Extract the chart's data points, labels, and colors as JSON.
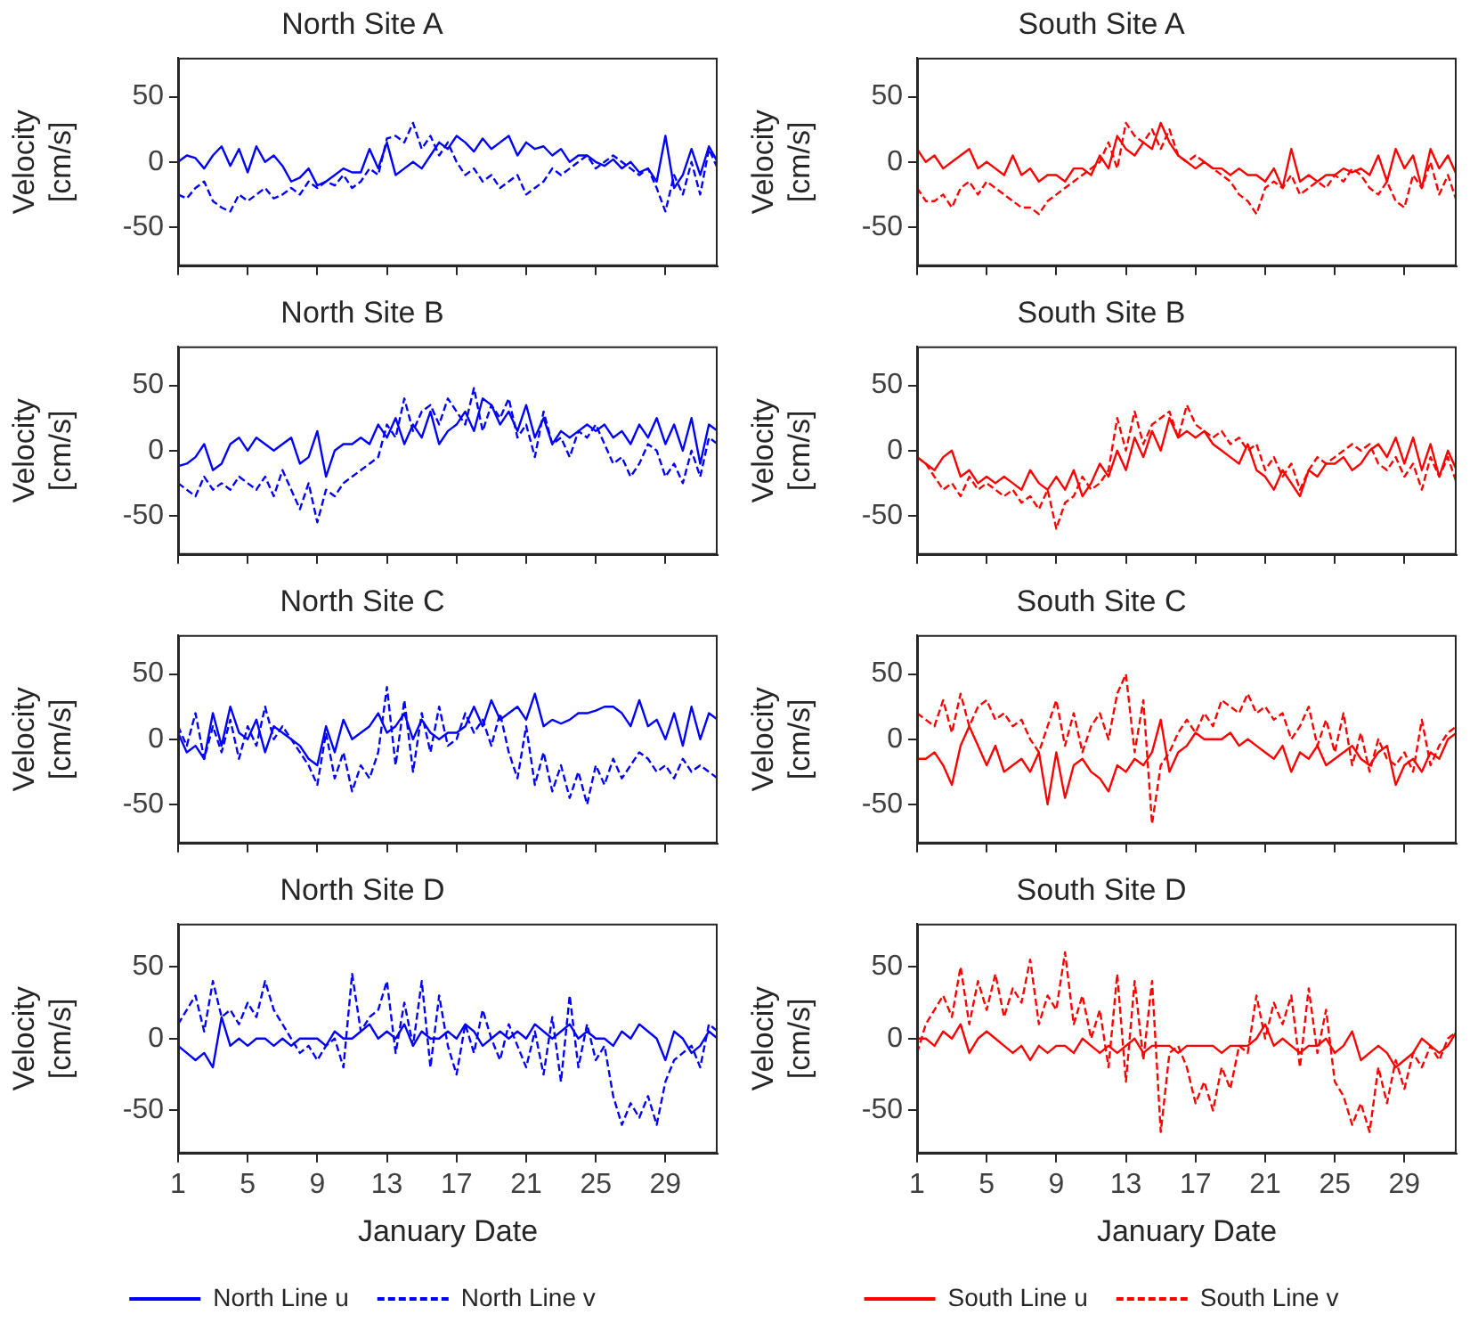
{
  "chart_data": [
    {
      "type": "line",
      "title": "North Site A",
      "ylabel": "Velocity [cm/s]",
      "xlim": [
        1,
        32
      ],
      "xticks": [
        1,
        5,
        9,
        13,
        17,
        21,
        25,
        29
      ],
      "ylim": [
        -80,
        80
      ],
      "yticks": [
        -50,
        0,
        50
      ],
      "tick_labels": "y",
      "grid": false,
      "marker": "none",
      "x": [
        1,
        1.5,
        2,
        2.5,
        3,
        3.5,
        4,
        4.5,
        5,
        5.5,
        6,
        6.5,
        7,
        7.5,
        8,
        8.5,
        9,
        9.5,
        10,
        10.5,
        11,
        11.5,
        12,
        12.5,
        13,
        13.5,
        14,
        14.5,
        15,
        15.5,
        16,
        16.5,
        17,
        17.5,
        18,
        18.5,
        19,
        19.5,
        20,
        20.5,
        21,
        21.5,
        22,
        22.5,
        23,
        23.5,
        24,
        24.5,
        25,
        25.5,
        26,
        26.5,
        27,
        27.5,
        28,
        28.5,
        29,
        29.5,
        30,
        30.5,
        31,
        31.5,
        32
      ],
      "series": [
        {
          "color": "#0000ff",
          "line_style": "solid",
          "values": [
            0,
            5,
            3,
            -5,
            5,
            12,
            -3,
            10,
            -8,
            12,
            0,
            5,
            -3,
            -15,
            -12,
            -5,
            -18,
            -15,
            -10,
            -5,
            -8,
            -8,
            10,
            -5,
            15,
            -10,
            -5,
            0,
            -5,
            5,
            15,
            10,
            20,
            15,
            8,
            18,
            10,
            15,
            20,
            5,
            15,
            10,
            12,
            5,
            10,
            0,
            5,
            5,
            0,
            -3,
            2,
            -5,
            0,
            -8,
            -5,
            -15,
            20,
            -20,
            -10,
            10,
            -10,
            12,
            0
          ]
        },
        {
          "color": "#0000ff",
          "line_style": "dashed",
          "values": [
            -25,
            -28,
            -20,
            -15,
            -30,
            -35,
            -38,
            -25,
            -30,
            -25,
            -20,
            -28,
            -25,
            -20,
            -25,
            -15,
            -20,
            -15,
            -18,
            -10,
            -20,
            -15,
            -5,
            -10,
            18,
            20,
            15,
            30,
            10,
            20,
            5,
            15,
            0,
            -10,
            -5,
            -15,
            -10,
            -20,
            -15,
            -10,
            -25,
            -20,
            -15,
            -5,
            -10,
            -5,
            0,
            5,
            -5,
            0,
            5,
            0,
            -5,
            -10,
            -5,
            -20,
            -38,
            -10,
            -25,
            0,
            -25,
            10,
            -5
          ]
        }
      ]
    },
    {
      "type": "line",
      "title": "South Site A",
      "ylabel": "Velocity [cm/s]",
      "xlim": [
        1,
        32
      ],
      "xticks": [
        1,
        5,
        9,
        13,
        17,
        21,
        25,
        29
      ],
      "ylim": [
        -80,
        80
      ],
      "yticks": [
        -50,
        0,
        50
      ],
      "tick_labels": "y",
      "grid": false,
      "marker": "none",
      "x": [
        1,
        1.5,
        2,
        2.5,
        3,
        3.5,
        4,
        4.5,
        5,
        5.5,
        6,
        6.5,
        7,
        7.5,
        8,
        8.5,
        9,
        9.5,
        10,
        10.5,
        11,
        11.5,
        12,
        12.5,
        13,
        13.5,
        14,
        14.5,
        15,
        15.5,
        16,
        16.5,
        17,
        17.5,
        18,
        18.5,
        19,
        19.5,
        20,
        20.5,
        21,
        21.5,
        22,
        22.5,
        23,
        23.5,
        24,
        24.5,
        25,
        25.5,
        26,
        26.5,
        27,
        27.5,
        28,
        28.5,
        29,
        29.5,
        30,
        30.5,
        31,
        31.5,
        32
      ],
      "series": [
        {
          "color": "#ff0000",
          "line_style": "solid",
          "values": [
            10,
            0,
            5,
            -5,
            0,
            5,
            10,
            -5,
            0,
            -5,
            -10,
            5,
            -10,
            -5,
            -15,
            -10,
            -10,
            -15,
            -5,
            -5,
            -10,
            5,
            -5,
            20,
            10,
            5,
            15,
            10,
            30,
            15,
            5,
            0,
            -5,
            0,
            -5,
            -5,
            -10,
            -5,
            -10,
            -10,
            -15,
            -5,
            -20,
            10,
            -15,
            -10,
            -15,
            -10,
            -10,
            -5,
            -8,
            -5,
            -10,
            5,
            -15,
            10,
            -5,
            5,
            -20,
            10,
            -5,
            5,
            -10
          ]
        },
        {
          "color": "#ff0000",
          "line_style": "dashed",
          "values": [
            -20,
            -30,
            -30,
            -25,
            -35,
            -20,
            -15,
            -25,
            -15,
            -20,
            -25,
            -30,
            -35,
            -35,
            -40,
            -30,
            -25,
            -20,
            -15,
            -10,
            -5,
            0,
            15,
            -5,
            30,
            20,
            15,
            25,
            10,
            25,
            5,
            0,
            5,
            0,
            -5,
            -10,
            -15,
            -25,
            -30,
            -40,
            -20,
            -15,
            -20,
            -10,
            -25,
            -20,
            -15,
            -20,
            -10,
            -15,
            -5,
            -10,
            -20,
            -25,
            -15,
            -30,
            -35,
            -10,
            -20,
            0,
            -25,
            -10,
            -30
          ]
        }
      ]
    },
    {
      "type": "line",
      "title": "North Site B",
      "ylabel": "Velocity [cm/s]",
      "xlim": [
        1,
        32
      ],
      "xticks": [
        1,
        5,
        9,
        13,
        17,
        21,
        25,
        29
      ],
      "ylim": [
        -80,
        80
      ],
      "yticks": [
        -50,
        0,
        50
      ],
      "tick_labels": "y",
      "grid": false,
      "marker": "none",
      "x": [
        1,
        1.5,
        2,
        2.5,
        3,
        3.5,
        4,
        4.5,
        5,
        5.5,
        6,
        6.5,
        7,
        7.5,
        8,
        8.5,
        9,
        9.5,
        10,
        10.5,
        11,
        11.5,
        12,
        12.5,
        13,
        13.5,
        14,
        14.5,
        15,
        15.5,
        16,
        16.5,
        17,
        17.5,
        18,
        18.5,
        19,
        19.5,
        20,
        20.5,
        21,
        21.5,
        22,
        22.5,
        23,
        23.5,
        24,
        24.5,
        25,
        25.5,
        26,
        26.5,
        27,
        27.5,
        28,
        28.5,
        29,
        29.5,
        30,
        30.5,
        31,
        31.5,
        32
      ],
      "series": [
        {
          "color": "#0000ff",
          "line_style": "solid",
          "values": [
            -12,
            -10,
            -5,
            5,
            -15,
            -10,
            5,
            10,
            0,
            10,
            5,
            0,
            5,
            10,
            -10,
            -5,
            15,
            -20,
            0,
            5,
            5,
            10,
            5,
            20,
            10,
            25,
            5,
            20,
            10,
            30,
            5,
            15,
            20,
            30,
            15,
            40,
            35,
            20,
            30,
            15,
            35,
            10,
            25,
            5,
            15,
            10,
            15,
            20,
            15,
            20,
            10,
            15,
            5,
            20,
            10,
            25,
            5,
            20,
            0,
            25,
            -10,
            20,
            15
          ]
        },
        {
          "color": "#0000ff",
          "line_style": "dashed",
          "values": [
            -25,
            -30,
            -35,
            -20,
            -30,
            -25,
            -30,
            -20,
            -25,
            -30,
            -20,
            -35,
            -15,
            -30,
            -45,
            -25,
            -55,
            -30,
            -35,
            -25,
            -20,
            -15,
            -10,
            -5,
            20,
            10,
            40,
            15,
            30,
            35,
            20,
            40,
            30,
            20,
            48,
            15,
            35,
            25,
            40,
            10,
            20,
            -5,
            30,
            5,
            10,
            -5,
            15,
            10,
            20,
            5,
            -10,
            -5,
            -20,
            -10,
            5,
            0,
            -20,
            -10,
            -25,
            0,
            -20,
            10,
            5
          ]
        }
      ]
    },
    {
      "type": "line",
      "title": "South Site B",
      "ylabel": "Velocity [cm/s]",
      "xlim": [
        1,
        32
      ],
      "xticks": [
        1,
        5,
        9,
        13,
        17,
        21,
        25,
        29
      ],
      "ylim": [
        -80,
        80
      ],
      "yticks": [
        -50,
        0,
        50
      ],
      "tick_labels": "y",
      "grid": false,
      "marker": "none",
      "x": [
        1,
        1.5,
        2,
        2.5,
        3,
        3.5,
        4,
        4.5,
        5,
        5.5,
        6,
        6.5,
        7,
        7.5,
        8,
        8.5,
        9,
        9.5,
        10,
        10.5,
        11,
        11.5,
        12,
        12.5,
        13,
        13.5,
        14,
        14.5,
        15,
        15.5,
        16,
        16.5,
        17,
        17.5,
        18,
        18.5,
        19,
        19.5,
        20,
        20.5,
        21,
        21.5,
        22,
        22.5,
        23,
        23.5,
        24,
        24.5,
        25,
        25.5,
        26,
        26.5,
        27,
        27.5,
        28,
        28.5,
        29,
        29.5,
        30,
        30.5,
        31,
        31.5,
        32
      ],
      "series": [
        {
          "color": "#ff0000",
          "line_style": "solid",
          "values": [
            -5,
            -10,
            -15,
            -5,
            0,
            -20,
            -15,
            -25,
            -20,
            -25,
            -20,
            -25,
            -30,
            -15,
            -25,
            -30,
            -20,
            -30,
            -15,
            -35,
            -25,
            -10,
            -20,
            0,
            -15,
            10,
            -5,
            15,
            0,
            25,
            10,
            15,
            10,
            15,
            5,
            0,
            -5,
            -10,
            5,
            -15,
            -20,
            -30,
            -15,
            -25,
            -35,
            -15,
            -20,
            -10,
            -10,
            -5,
            -15,
            -10,
            0,
            5,
            -5,
            10,
            -10,
            10,
            -15,
            5,
            -20,
            0,
            -15
          ]
        },
        {
          "color": "#ff0000",
          "line_style": "dashed",
          "values": [
            -5,
            -10,
            -20,
            -30,
            -25,
            -35,
            -20,
            -30,
            -25,
            -30,
            -35,
            -30,
            -40,
            -35,
            -45,
            -30,
            -60,
            -40,
            -35,
            -20,
            -30,
            -25,
            -15,
            25,
            0,
            30,
            5,
            20,
            25,
            30,
            10,
            35,
            20,
            15,
            10,
            15,
            5,
            10,
            0,
            5,
            -15,
            -5,
            -20,
            -10,
            -30,
            -15,
            -5,
            -10,
            -5,
            0,
            5,
            0,
            5,
            -10,
            -15,
            -5,
            -20,
            -10,
            -30,
            -5,
            -20,
            -5,
            -25
          ]
        }
      ]
    },
    {
      "type": "line",
      "title": "North Site C",
      "ylabel": "Velocity [cm/s]",
      "xlim": [
        1,
        32
      ],
      "xticks": [
        1,
        5,
        9,
        13,
        17,
        21,
        25,
        29
      ],
      "ylim": [
        -80,
        80
      ],
      "yticks": [
        -50,
        0,
        50
      ],
      "tick_labels": "y",
      "grid": false,
      "marker": "none",
      "x": [
        1,
        1.5,
        2,
        2.5,
        3,
        3.5,
        4,
        4.5,
        5,
        5.5,
        6,
        6.5,
        7,
        7.5,
        8,
        8.5,
        9,
        9.5,
        10,
        10.5,
        11,
        11.5,
        12,
        12.5,
        13,
        13.5,
        14,
        14.5,
        15,
        15.5,
        16,
        16.5,
        17,
        17.5,
        18,
        18.5,
        19,
        19.5,
        20,
        20.5,
        21,
        21.5,
        22,
        22.5,
        23,
        23.5,
        24,
        24.5,
        25,
        25.5,
        26,
        26.5,
        27,
        27.5,
        28,
        28.5,
        29,
        29.5,
        30,
        30.5,
        31,
        31.5,
        32
      ],
      "series": [
        {
          "color": "#0000ff",
          "line_style": "solid",
          "values": [
            5,
            -10,
            -5,
            -15,
            20,
            -5,
            25,
            5,
            0,
            15,
            -10,
            10,
            5,
            0,
            -5,
            -15,
            -20,
            10,
            -10,
            15,
            0,
            5,
            10,
            20,
            5,
            10,
            20,
            0,
            15,
            5,
            0,
            5,
            5,
            10,
            25,
            10,
            30,
            15,
            20,
            25,
            15,
            35,
            10,
            15,
            12,
            15,
            20,
            20,
            22,
            25,
            25,
            20,
            10,
            30,
            10,
            15,
            0,
            20,
            -5,
            25,
            0,
            20,
            15
          ]
        },
        {
          "color": "#0000ff",
          "line_style": "dashed",
          "values": [
            10,
            -5,
            20,
            -15,
            10,
            -10,
            15,
            -15,
            10,
            -5,
            25,
            0,
            10,
            0,
            -10,
            -20,
            -35,
            5,
            -30,
            -10,
            -40,
            -20,
            -30,
            -10,
            40,
            -20,
            30,
            -25,
            20,
            -10,
            25,
            -5,
            0,
            20,
            5,
            15,
            -5,
            20,
            -10,
            -30,
            10,
            -35,
            -10,
            -40,
            -20,
            -45,
            -25,
            -50,
            -20,
            -35,
            -15,
            -30,
            -20,
            -10,
            -15,
            -25,
            -20,
            -30,
            -15,
            -25,
            -20,
            -25,
            -30
          ]
        }
      ]
    },
    {
      "type": "line",
      "title": "South Site C",
      "ylabel": "Velocity [cm/s]",
      "xlim": [
        1,
        32
      ],
      "xticks": [
        1,
        5,
        9,
        13,
        17,
        21,
        25,
        29
      ],
      "ylim": [
        -80,
        80
      ],
      "yticks": [
        -50,
        0,
        50
      ],
      "tick_labels": "y",
      "grid": false,
      "marker": "none",
      "x": [
        1,
        1.5,
        2,
        2.5,
        3,
        3.5,
        4,
        4.5,
        5,
        5.5,
        6,
        6.5,
        7,
        7.5,
        8,
        8.5,
        9,
        9.5,
        10,
        10.5,
        11,
        11.5,
        12,
        12.5,
        13,
        13.5,
        14,
        14.5,
        15,
        15.5,
        16,
        16.5,
        17,
        17.5,
        18,
        18.5,
        19,
        19.5,
        20,
        20.5,
        21,
        21.5,
        22,
        22.5,
        23,
        23.5,
        24,
        24.5,
        25,
        25.5,
        26,
        26.5,
        27,
        27.5,
        28,
        28.5,
        29,
        29.5,
        30,
        30.5,
        31,
        31.5,
        32
      ],
      "series": [
        {
          "color": "#ff0000",
          "line_style": "solid",
          "values": [
            -15,
            -15,
            -10,
            -20,
            -35,
            -5,
            10,
            -5,
            -20,
            -5,
            -25,
            -20,
            -15,
            -25,
            -10,
            -50,
            -10,
            -45,
            -20,
            -15,
            -25,
            -30,
            -40,
            -20,
            -25,
            -15,
            -20,
            -10,
            15,
            -25,
            -10,
            -5,
            5,
            0,
            0,
            0,
            5,
            -5,
            0,
            -5,
            -10,
            -15,
            -5,
            -25,
            -10,
            -15,
            -5,
            -20,
            -15,
            -10,
            -5,
            -15,
            -20,
            -10,
            -5,
            -35,
            -20,
            -15,
            -25,
            -10,
            -15,
            0,
            5
          ]
        },
        {
          "color": "#ff0000",
          "line_style": "dashed",
          "values": [
            20,
            15,
            10,
            30,
            5,
            35,
            10,
            25,
            30,
            15,
            20,
            10,
            15,
            0,
            -10,
            10,
            30,
            -5,
            20,
            -10,
            10,
            20,
            0,
            35,
            50,
            -10,
            30,
            -65,
            -20,
            -10,
            5,
            15,
            5,
            20,
            10,
            30,
            25,
            20,
            35,
            20,
            25,
            15,
            20,
            0,
            10,
            25,
            -5,
            15,
            -10,
            20,
            -20,
            5,
            -25,
            0,
            -15,
            -20,
            -10,
            -25,
            15,
            -20,
            -5,
            5,
            10
          ]
        }
      ]
    },
    {
      "type": "line",
      "title": "North Site D",
      "xlabel": "January Date",
      "ylabel": "Velocity [cm/s]",
      "xlim": [
        1,
        32
      ],
      "xticks": [
        1,
        5,
        9,
        13,
        17,
        21,
        25,
        29
      ],
      "ylim": [
        -80,
        80
      ],
      "yticks": [
        -50,
        0,
        50
      ],
      "grid": false,
      "marker": "none",
      "legend": "bottom",
      "x": [
        1,
        1.5,
        2,
        2.5,
        3,
        3.5,
        4,
        4.5,
        5,
        5.5,
        6,
        6.5,
        7,
        7.5,
        8,
        8.5,
        9,
        9.5,
        10,
        10.5,
        11,
        11.5,
        12,
        12.5,
        13,
        13.5,
        14,
        14.5,
        15,
        15.5,
        16,
        16.5,
        17,
        17.5,
        18,
        18.5,
        19,
        19.5,
        20,
        20.5,
        21,
        21.5,
        22,
        22.5,
        23,
        23.5,
        24,
        24.5,
        25,
        25.5,
        26,
        26.5,
        27,
        27.5,
        28,
        28.5,
        29,
        29.5,
        30,
        30.5,
        31,
        31.5,
        32
      ],
      "series": [
        {
          "name": "North Line u",
          "color": "#0000ff",
          "line_style": "solid",
          "values": [
            -5,
            -10,
            -15,
            -10,
            -20,
            15,
            -5,
            0,
            -5,
            0,
            0,
            -5,
            0,
            -5,
            0,
            0,
            0,
            -5,
            5,
            0,
            0,
            5,
            10,
            0,
            5,
            0,
            10,
            -5,
            5,
            0,
            0,
            5,
            0,
            10,
            5,
            -5,
            0,
            5,
            0,
            5,
            0,
            10,
            5,
            0,
            5,
            10,
            0,
            5,
            0,
            0,
            -5,
            5,
            0,
            10,
            5,
            0,
            -15,
            5,
            0,
            -10,
            -5,
            5,
            0
          ]
        },
        {
          "name": "North Line v",
          "color": "#0000ff",
          "line_style": "dashed",
          "values": [
            10,
            20,
            30,
            5,
            40,
            15,
            20,
            10,
            25,
            15,
            40,
            20,
            10,
            0,
            -10,
            -5,
            -15,
            -5,
            0,
            -20,
            45,
            5,
            15,
            20,
            40,
            -10,
            25,
            -5,
            40,
            -20,
            30,
            -5,
            -25,
            10,
            -10,
            20,
            0,
            -15,
            10,
            -5,
            -20,
            5,
            -25,
            15,
            -30,
            30,
            -20,
            10,
            -15,
            -5,
            -40,
            -60,
            -45,
            -55,
            -40,
            -60,
            -30,
            -15,
            -10,
            -5,
            -20,
            10,
            5
          ]
        }
      ]
    },
    {
      "type": "line",
      "title": "South Site D",
      "xlabel": "January Date",
      "ylabel": "Velocity [cm/s]",
      "xlim": [
        1,
        32
      ],
      "xticks": [
        1,
        5,
        9,
        13,
        17,
        21,
        25,
        29
      ],
      "ylim": [
        -80,
        80
      ],
      "yticks": [
        -50,
        0,
        50
      ],
      "grid": false,
      "marker": "none",
      "legend": "bottom",
      "x": [
        1,
        1.5,
        2,
        2.5,
        3,
        3.5,
        4,
        4.5,
        5,
        5.5,
        6,
        6.5,
        7,
        7.5,
        8,
        8.5,
        9,
        9.5,
        10,
        10.5,
        11,
        11.5,
        12,
        12.5,
        13,
        13.5,
        14,
        14.5,
        15,
        15.5,
        16,
        16.5,
        17,
        17.5,
        18,
        18.5,
        19,
        19.5,
        20,
        20.5,
        21,
        21.5,
        22,
        22.5,
        23,
        23.5,
        24,
        24.5,
        25,
        25.5,
        26,
        26.5,
        27,
        27.5,
        28,
        28.5,
        29,
        29.5,
        30,
        30.5,
        31,
        31.5,
        32
      ],
      "series": [
        {
          "name": "South Line u",
          "color": "#ff0000",
          "line_style": "solid",
          "values": [
            0,
            0,
            -5,
            5,
            0,
            10,
            -10,
            0,
            5,
            0,
            -5,
            -10,
            -5,
            -15,
            -5,
            -10,
            -5,
            -5,
            -10,
            0,
            -5,
            -10,
            -5,
            -10,
            -5,
            0,
            -10,
            -5,
            -5,
            -5,
            -10,
            -5,
            -5,
            -5,
            -5,
            -10,
            -5,
            -5,
            -5,
            0,
            10,
            -5,
            0,
            -5,
            -10,
            -5,
            -5,
            0,
            -10,
            -5,
            5,
            -15,
            -10,
            -5,
            -10,
            -20,
            -15,
            -10,
            0,
            -5,
            -10,
            -5,
            5
          ]
        },
        {
          "name": "South Line v",
          "color": "#ff0000",
          "line_style": "dashed",
          "values": [
            -10,
            10,
            20,
            30,
            15,
            50,
            10,
            40,
            20,
            45,
            15,
            35,
            25,
            55,
            10,
            30,
            20,
            60,
            10,
            30,
            0,
            20,
            -20,
            45,
            -30,
            40,
            -15,
            40,
            -65,
            -10,
            -5,
            -20,
            -45,
            -30,
            -50,
            -20,
            -35,
            -5,
            -10,
            30,
            0,
            25,
            10,
            30,
            -20,
            35,
            -10,
            20,
            -30,
            -40,
            -60,
            -45,
            -65,
            -20,
            -45,
            -15,
            -35,
            -10,
            -20,
            -5,
            -15,
            0,
            5
          ]
        }
      ]
    }
  ]
}
